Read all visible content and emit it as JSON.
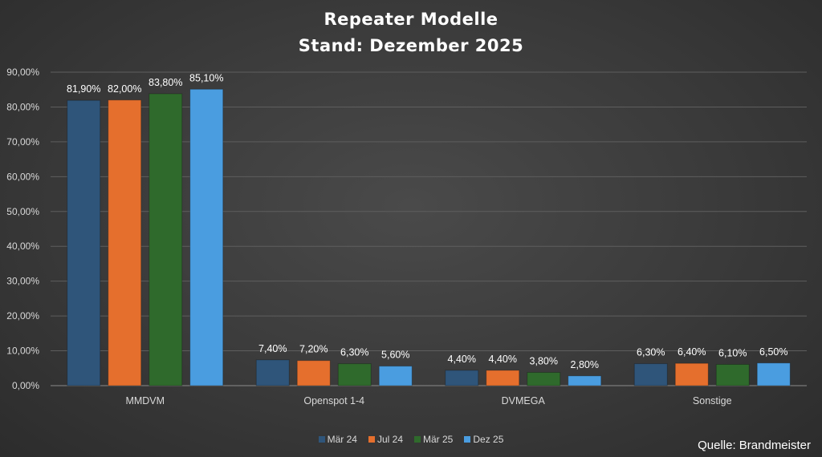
{
  "chart_data": {
    "type": "bar",
    "title": "Repeater Modelle",
    "subtitle": "Stand: Dezember 2025",
    "categories": [
      "MMDVM",
      "Openspot 1-4",
      "DVMEGA",
      "Sonstige"
    ],
    "series": [
      {
        "name": "Mär 24",
        "color": "#2f557a",
        "values": [
          81.9,
          7.4,
          4.4,
          6.3
        ],
        "labels": [
          "81,90%",
          "7,40%",
          "4,40%",
          "6,30%"
        ]
      },
      {
        "name": "Jul 24",
        "color": "#e56f2d",
        "values": [
          82.0,
          7.2,
          4.4,
          6.4
        ],
        "labels": [
          "82,00%",
          "7,20%",
          "4,40%",
          "6,40%"
        ]
      },
      {
        "name": "Mär 25",
        "color": "#2f6a2c",
        "values": [
          83.8,
          6.3,
          3.8,
          6.1
        ],
        "labels": [
          "83,80%",
          "6,30%",
          "3,80%",
          "6,10%"
        ]
      },
      {
        "name": "Dez 25",
        "color": "#4a9de0",
        "values": [
          85.1,
          5.6,
          2.8,
          6.5
        ],
        "labels": [
          "85,10%",
          "5,60%",
          "2,80%",
          "6,50%"
        ]
      }
    ],
    "ylim": [
      0,
      90
    ],
    "yticks": [
      0,
      10,
      20,
      30,
      40,
      50,
      60,
      70,
      80,
      90
    ],
    "ytick_labels": [
      "0,00%",
      "10,00%",
      "20,00%",
      "30,00%",
      "40,00%",
      "50,00%",
      "60,00%",
      "70,00%",
      "80,00%",
      "90,00%"
    ],
    "grid": true,
    "legend_position": "bottom"
  },
  "source": "Quelle: Brandmeister"
}
